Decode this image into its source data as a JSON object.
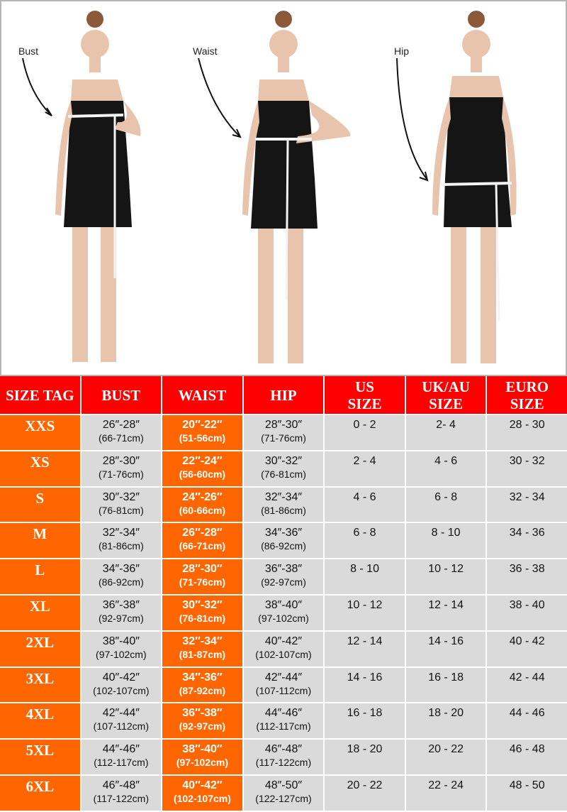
{
  "measure_labels": [
    "Bust",
    "Waist",
    "Hip"
  ],
  "colors": {
    "header": "#ff0000",
    "highlight": "#ff6600",
    "cell": "#dadada",
    "dress": "#151515"
  },
  "table": {
    "headers": [
      "SIZE TAG",
      "BUST",
      "WAIST",
      "HIP",
      "US\nSIZE",
      "UK/AU\nSIZE",
      "EURO\nSIZE"
    ],
    "rows": [
      {
        "tag": "XXS",
        "bust_in": "26″-28″",
        "bust_cm": "(66-71cm)",
        "waist_in": "20″-22″",
        "waist_cm": "(51-56cm)",
        "hip_in": "28″-30″",
        "hip_cm": "(71-76cm)",
        "us": "0 - 2",
        "uk": "2- 4",
        "euro": "28 - 30"
      },
      {
        "tag": "XS",
        "bust_in": "28″-30″",
        "bust_cm": "(71-76cm)",
        "waist_in": "22″-24″",
        "waist_cm": "(56-60cm)",
        "hip_in": "30″-32″",
        "hip_cm": "(76-81cm)",
        "us": "2 - 4",
        "uk": "4 - 6",
        "euro": "30 - 32"
      },
      {
        "tag": "S",
        "bust_in": "30″-32″",
        "bust_cm": "(76-81cm)",
        "waist_in": "24″-26″",
        "waist_cm": "(60-66cm)",
        "hip_in": "32″-34″",
        "hip_cm": "(81-86cm)",
        "us": "4 - 6",
        "uk": "6 - 8",
        "euro": "32 - 34"
      },
      {
        "tag": "M",
        "bust_in": "32″-34″",
        "bust_cm": "(81-86cm)",
        "waist_in": "26″-28″",
        "waist_cm": "(66-71cm)",
        "hip_in": "34″-36″",
        "hip_cm": "(86-92cm)",
        "us": "6 - 8",
        "uk": "8 - 10",
        "euro": "34 - 36"
      },
      {
        "tag": "L",
        "bust_in": "34″-36″",
        "bust_cm": "(86-92cm)",
        "waist_in": "28″-30″",
        "waist_cm": "(71-76cm)",
        "hip_in": "36″-38″",
        "hip_cm": "(92-97cm)",
        "us": "8 - 10",
        "uk": "10 - 12",
        "euro": "36 - 38"
      },
      {
        "tag": "XL",
        "bust_in": "36″-38″",
        "bust_cm": "(92-97cm)",
        "waist_in": "30″-32″",
        "waist_cm": "(76-81cm)",
        "hip_in": "38″-40″",
        "hip_cm": "(97-102cm)",
        "us": "10 - 12",
        "uk": "12 - 14",
        "euro": "38 - 40"
      },
      {
        "tag": "2XL",
        "bust_in": "38″-40″",
        "bust_cm": "(97-102cm)",
        "waist_in": "32″-34″",
        "waist_cm": "(81-87cm)",
        "hip_in": "40″-42″",
        "hip_cm": "(102-107cm)",
        "us": "12 - 14",
        "uk": "14 - 16",
        "euro": "40 - 42"
      },
      {
        "tag": "3XL",
        "bust_in": "40″-42″",
        "bust_cm": "(102-107cm)",
        "waist_in": "34″-36″",
        "waist_cm": "(87-92cm)",
        "hip_in": "42″-44″",
        "hip_cm": "(107-112cm)",
        "us": "14 - 16",
        "uk": "16 - 18",
        "euro": "42 - 44"
      },
      {
        "tag": "4XL",
        "bust_in": "42″-44″",
        "bust_cm": "(107-112cm)",
        "waist_in": "36″-38″",
        "waist_cm": "(92-97cm)",
        "hip_in": "44″-46″",
        "hip_cm": "(112-117cm)",
        "us": "16 - 18",
        "uk": "18 - 20",
        "euro": "44 - 46"
      },
      {
        "tag": "5XL",
        "bust_in": "44″-46″",
        "bust_cm": "(112-117cm)",
        "waist_in": "38″-40″",
        "waist_cm": "(97-102cm)",
        "hip_in": "46″-48″",
        "hip_cm": "(117-122cm)",
        "us": "18 - 20",
        "uk": "20 - 22",
        "euro": "46 - 48"
      },
      {
        "tag": "6XL",
        "bust_in": "46″-48″",
        "bust_cm": "(117-122cm)",
        "waist_in": "40″-42″",
        "waist_cm": "(102-107cm)",
        "hip_in": "48″-50″",
        "hip_cm": "(122-127cm)",
        "us": "20 - 22",
        "uk": "22 - 24",
        "euro": "48 - 50"
      }
    ]
  }
}
